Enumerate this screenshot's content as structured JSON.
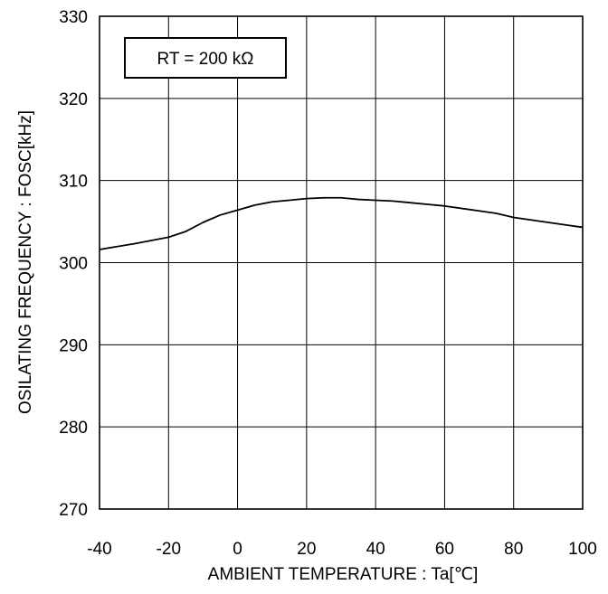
{
  "chart_data": {
    "type": "line",
    "title": "",
    "xlabel": "AMBIENT TEMPERATURE : Ta[℃]",
    "ylabel": "OSILATING FREQUENCY  :  FOSC[kHz]",
    "xlim": [
      -40,
      100
    ],
    "ylim": [
      270,
      330
    ],
    "xticks": [
      -40,
      -20,
      0,
      20,
      40,
      60,
      80,
      100
    ],
    "yticks": [
      270,
      280,
      290,
      300,
      310,
      320,
      330
    ],
    "xtick_labels": [
      "-40",
      "-20",
      "0",
      "20",
      "40",
      "60",
      "80",
      "100"
    ],
    "ytick_labels": [
      "270",
      "280",
      "290",
      "300",
      "310",
      "320",
      "330"
    ],
    "grid": true,
    "annotation": "RT = 200 kΩ",
    "series": [
      {
        "color": "#000000",
        "x": [
          -40,
          -30,
          -20,
          -15,
          -10,
          -5,
          0,
          5,
          10,
          15,
          20,
          25,
          30,
          35,
          40,
          45,
          50,
          55,
          60,
          65,
          70,
          75,
          80,
          85,
          90,
          95,
          100
        ],
        "y": [
          301.6,
          302.3,
          303.1,
          303.8,
          304.9,
          305.8,
          306.4,
          307.0,
          307.4,
          307.6,
          307.8,
          307.9,
          307.9,
          307.7,
          307.6,
          307.5,
          307.3,
          307.1,
          306.9,
          306.6,
          306.3,
          306.0,
          305.5,
          305.2,
          304.9,
          304.6,
          304.3
        ]
      }
    ]
  }
}
